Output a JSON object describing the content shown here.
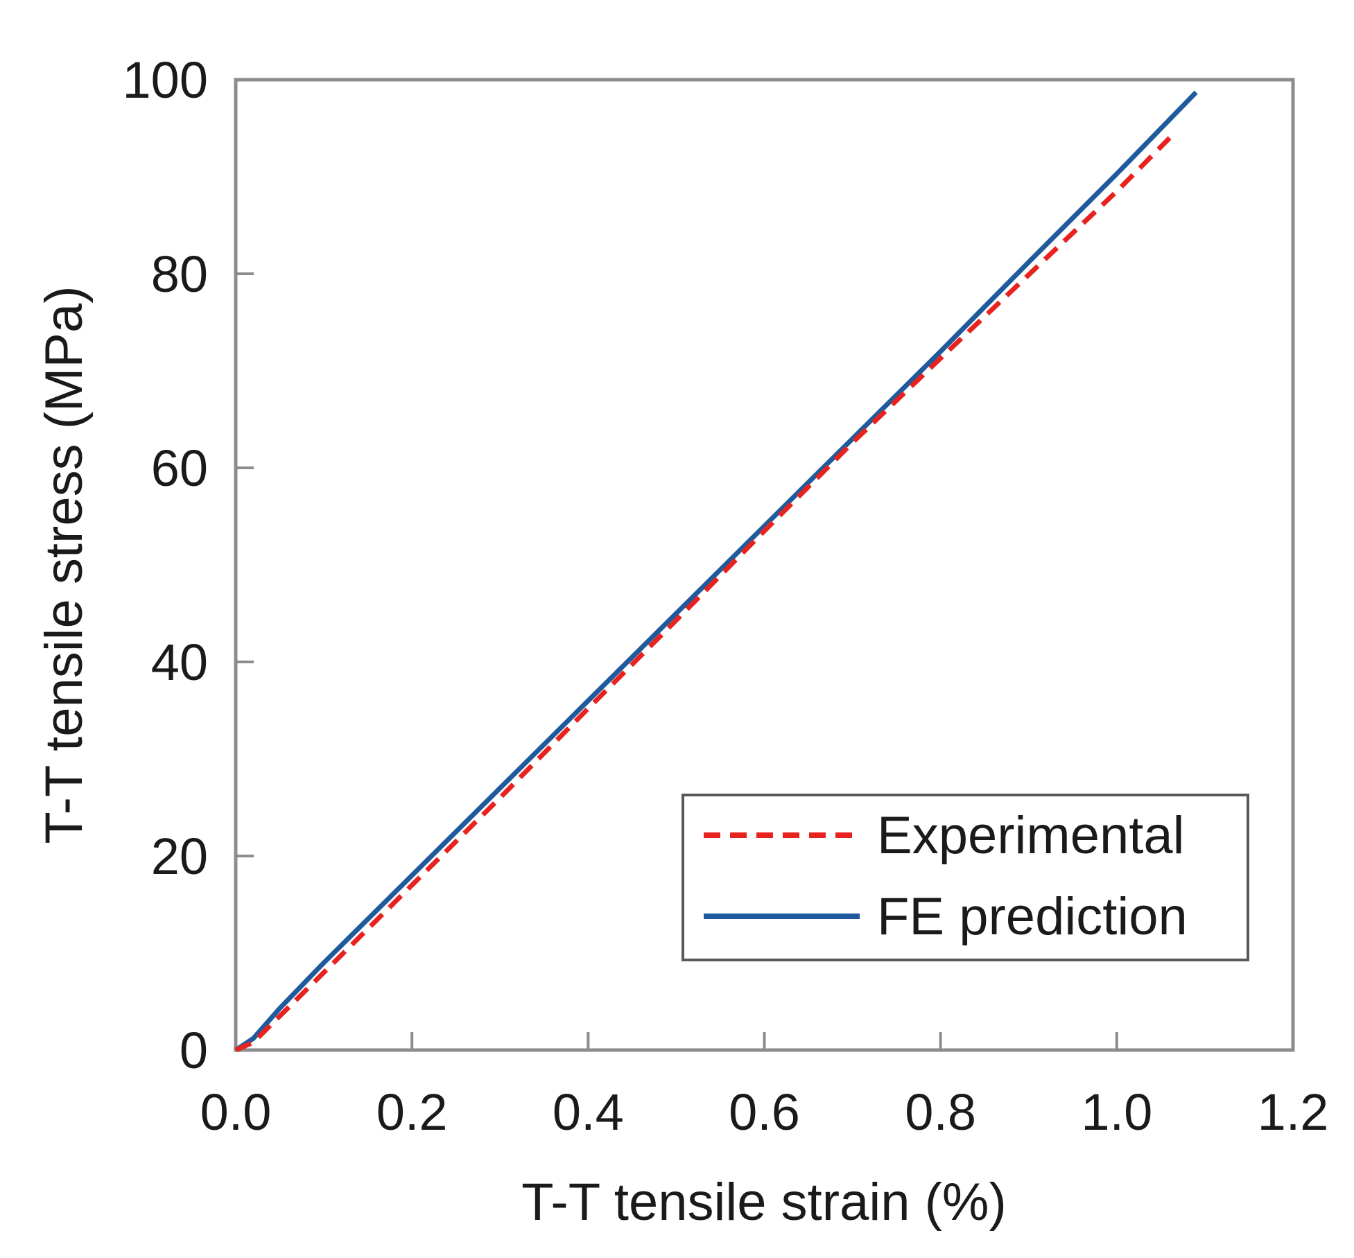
{
  "chart_data": {
    "type": "line",
    "title": "",
    "xlabel": "T-T tensile strain (%)",
    "ylabel": "T-T tensile stress (MPa)",
    "xlim": [
      0,
      1.2
    ],
    "ylim": [
      0,
      100
    ],
    "xticks": [
      0,
      0.2,
      0.4,
      0.6,
      0.8,
      1.0,
      1.2
    ],
    "xtick_labels": [
      "0.0",
      "0.2",
      "0.4",
      "0.6",
      "0.8",
      "1.0",
      "1.2"
    ],
    "yticks": [
      0,
      20,
      40,
      60,
      80,
      100
    ],
    "ytick_labels": [
      "0",
      "20",
      "40",
      "60",
      "80",
      "100"
    ],
    "grid": false,
    "legend_position": "lower-right",
    "series": [
      {
        "name": "Experimental",
        "style": "dashed",
        "color": "#e8231f",
        "x": [
          0.0,
          0.02,
          0.05,
          0.1,
          0.2,
          0.3,
          0.4,
          0.5,
          0.6,
          0.7,
          0.8,
          0.9,
          1.0,
          1.06
        ],
        "y": [
          0.0,
          0.8,
          3.5,
          8.0,
          17.0,
          26.0,
          35.2,
          44.3,
          53.5,
          62.6,
          71.3,
          79.9,
          88.5,
          94.0
        ]
      },
      {
        "name": "FE prediction",
        "style": "solid",
        "color": "#1f5b9c",
        "x": [
          0.0,
          0.02,
          0.05,
          0.1,
          0.2,
          0.3,
          0.4,
          0.5,
          0.6,
          0.7,
          0.8,
          0.9,
          1.0,
          1.09
        ],
        "y": [
          0.0,
          1.2,
          4.3,
          9.0,
          18.0,
          27.0,
          36.0,
          45.0,
          54.0,
          63.0,
          72.0,
          81.2,
          90.3,
          98.7
        ]
      }
    ]
  }
}
